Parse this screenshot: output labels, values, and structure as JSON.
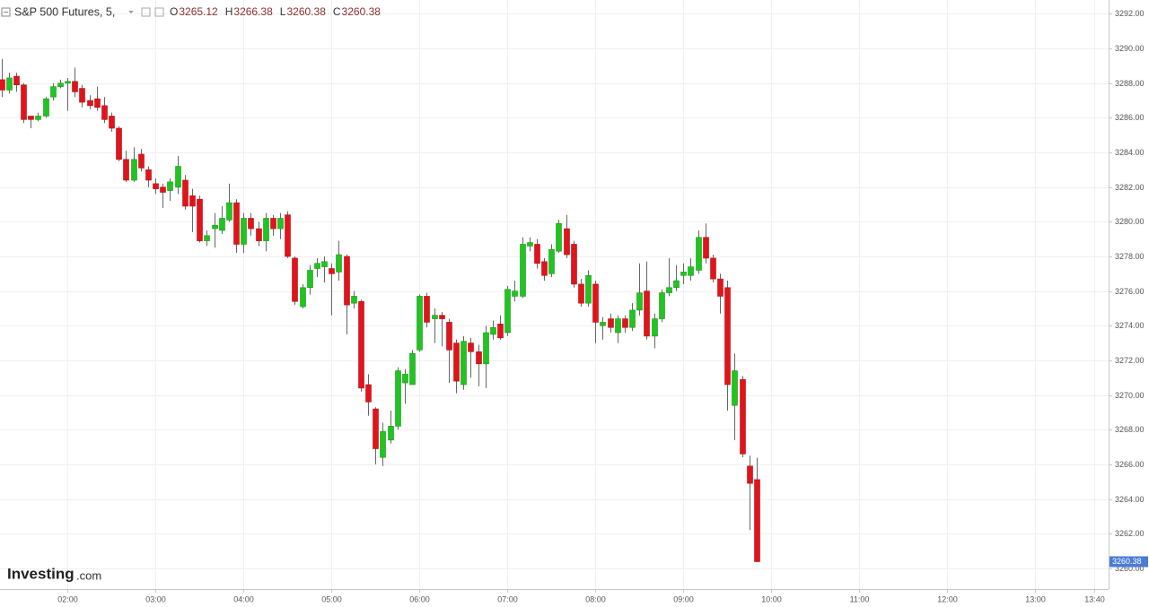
{
  "chart_data": {
    "type": "candlestick",
    "title": "S&P 500 Futures, 5,",
    "ohlc_labels": [
      "O",
      "H",
      "L",
      "C"
    ],
    "watermark": [
      "Investing",
      ".com"
    ],
    "up_color": "#22c322",
    "down_color": "#e0141b",
    "grid": true,
    "xlim": [
      74,
      830
    ],
    "xticks": [
      {
        "value": 120,
        "label": "02:00"
      },
      {
        "value": 180,
        "label": "03:00"
      },
      {
        "value": 240,
        "label": "04:00"
      },
      {
        "value": 300,
        "label": "05:00"
      },
      {
        "value": 360,
        "label": "06:00"
      },
      {
        "value": 420,
        "label": "07:00"
      },
      {
        "value": 480,
        "label": "08:00"
      },
      {
        "value": 540,
        "label": "09:00"
      },
      {
        "value": 600,
        "label": "10:00"
      },
      {
        "value": 660,
        "label": "11:00"
      },
      {
        "value": 720,
        "label": "12:00"
      },
      {
        "value": 780,
        "label": "13:00"
      },
      {
        "value": 820,
        "label": "13:40"
      }
    ],
    "ylim": [
      3258.8,
      3292.8
    ],
    "yticks": [
      {
        "value": 3260,
        "label": "3260.00"
      },
      {
        "value": 3262,
        "label": "3262.00"
      },
      {
        "value": 3264,
        "label": "3264.00"
      },
      {
        "value": 3266,
        "label": "3266.00"
      },
      {
        "value": 3268,
        "label": "3268.00"
      },
      {
        "value": 3270,
        "label": "3270.00"
      },
      {
        "value": 3272,
        "label": "3272.00"
      },
      {
        "value": 3274,
        "label": "3274.00"
      },
      {
        "value": 3276,
        "label": "3276.00"
      },
      {
        "value": 3278,
        "label": "3278.00"
      },
      {
        "value": 3280,
        "label": "3280.00"
      },
      {
        "value": 3282,
        "label": "3282.00"
      },
      {
        "value": 3284,
        "label": "3284.00"
      },
      {
        "value": 3286,
        "label": "3286.00"
      },
      {
        "value": 3288,
        "label": "3288.00"
      },
      {
        "value": 3290,
        "label": "3290.00"
      },
      {
        "value": 3292,
        "label": "3292.00"
      }
    ],
    "x": [
      75,
      80,
      85,
      90,
      95,
      100,
      105,
      110,
      115,
      120,
      125,
      130,
      135,
      140,
      145,
      150,
      155,
      160,
      165,
      170,
      175,
      180,
      185,
      190,
      195,
      200,
      205,
      210,
      215,
      220,
      225,
      230,
      235,
      240,
      245,
      250,
      255,
      260,
      265,
      270,
      275,
      280,
      285,
      290,
      295,
      300,
      305,
      310,
      315,
      320,
      325,
      330,
      335,
      340,
      345,
      350,
      355,
      360,
      365,
      370,
      375,
      380,
      385,
      390,
      395,
      400,
      405,
      410,
      415,
      420,
      425,
      430,
      435,
      440,
      445,
      450,
      455,
      460,
      465,
      470,
      475,
      480,
      485,
      490,
      495,
      500,
      505,
      510,
      515,
      520,
      525,
      530,
      535,
      540,
      545,
      550,
      555,
      560,
      565,
      570,
      575,
      580,
      585,
      590
    ],
    "open": [
      3288.2,
      3287.6,
      3288.4,
      3287.9,
      3286.1,
      3285.9,
      3286.1,
      3287.2,
      3287.8,
      3288.0,
      3288.1,
      3287.7,
      3287.0,
      3287.1,
      3286.7,
      3286.1,
      3285.4,
      3283.6,
      3282.4,
      3283.9,
      3283.0,
      3282.2,
      3282.0,
      3281.8,
      3282.0,
      3282.4,
      3281.5,
      3281.3,
      3278.9,
      3279.6,
      3279.5,
      3280.1,
      3281.1,
      3278.7,
      3280.2,
      3279.6,
      3278.9,
      3280.2,
      3279.6,
      3280.4,
      3277.9,
      3275.1,
      3276.2,
      3277.3,
      3277.4,
      3277.3,
      3277.1,
      3278.0,
      3275.3,
      3275.4,
      3270.6,
      3269.2,
      3266.4,
      3267.4,
      3268.2,
      3270.7,
      3270.6,
      3272.6,
      3275.7,
      3274.4,
      3274.6,
      3274.2,
      3273.0,
      3270.6,
      3273.0,
      3272.5,
      3271.8,
      3273.5,
      3274.1,
      3273.6,
      3275.7,
      3275.7,
      3278.6,
      3278.7,
      3277.7,
      3277.0,
      3278.3,
      3279.6,
      3278.7,
      3276.4,
      3275.3,
      3276.4,
      3274.0,
      3274.4,
      3273.6,
      3274.4,
      3273.9,
      3274.9,
      3276.0,
      3273.4,
      3274.4,
      3275.9,
      3276.2,
      3276.9,
      3276.9,
      3277.2,
      3279.1,
      3277.9,
      3276.7,
      3276.2,
      3269.4,
      3270.9,
      3265.9,
      3265.12
    ],
    "high": [
      3289.4,
      3288.6,
      3288.6,
      3288.0,
      3286.1,
      3286.3,
      3287.2,
      3288.0,
      3288.2,
      3288.3,
      3288.9,
      3287.9,
      3287.3,
      3287.8,
      3287.2,
      3286.3,
      3285.5,
      3284.1,
      3284.3,
      3284.2,
      3283.2,
      3282.5,
      3282.2,
      3282.5,
      3283.8,
      3282.7,
      3281.9,
      3281.5,
      3279.5,
      3280.5,
      3280.9,
      3282.2,
      3281.3,
      3280.5,
      3280.5,
      3280.0,
      3280.5,
      3280.4,
      3280.5,
      3280.6,
      3278.0,
      3276.4,
      3277.5,
      3277.9,
      3278.0,
      3277.6,
      3278.9,
      3278.1,
      3276.0,
      3275.5,
      3271.2,
      3269.3,
      3268.4,
      3269.1,
      3271.6,
      3271.5,
      3272.6,
      3275.8,
      3275.9,
      3275.0,
      3274.8,
      3274.4,
      3273.2,
      3273.4,
      3273.3,
      3272.9,
      3274.0,
      3274.3,
      3274.6,
      3276.3,
      3276.6,
      3279.1,
      3279.1,
      3279.0,
      3277.9,
      3278.7,
      3280.1,
      3280.4,
      3278.9,
      3276.7,
      3277.2,
      3276.6,
      3274.5,
      3274.7,
      3274.6,
      3274.6,
      3275.3,
      3277.6,
      3277.7,
      3274.7,
      3276.1,
      3277.9,
      3277.5,
      3277.6,
      3277.9,
      3279.5,
      3279.9,
      3278.1,
      3277.0,
      3276.6,
      3272.4,
      3271.1,
      3266.5,
      3266.38
    ],
    "low": [
      3287.2,
      3287.4,
      3287.5,
      3285.7,
      3285.4,
      3285.8,
      3286.0,
      3287.0,
      3287.7,
      3286.4,
      3287.2,
      3286.6,
      3286.5,
      3286.4,
      3285.7,
      3285.2,
      3283.5,
      3282.3,
      3282.3,
      3282.9,
      3282.0,
      3281.6,
      3280.8,
      3281.2,
      3281.6,
      3280.7,
      3279.4,
      3278.8,
      3278.6,
      3278.5,
      3279.3,
      3280.0,
      3278.2,
      3278.2,
      3279.2,
      3278.6,
      3278.3,
      3279.2,
      3279.0,
      3277.9,
      3275.2,
      3275.0,
      3275.8,
      3276.8,
      3276.5,
      3274.6,
      3276.6,
      3273.5,
      3275.0,
      3270.2,
      3268.8,
      3266.0,
      3265.9,
      3267.2,
      3268.0,
      3269.5,
      3270.6,
      3272.5,
      3273.9,
      3273.0,
      3272.8,
      3270.7,
      3270.1,
      3270.3,
      3271.0,
      3270.5,
      3270.4,
      3273.2,
      3273.2,
      3273.4,
      3275.4,
      3275.6,
      3278.3,
      3277.3,
      3276.6,
      3276.8,
      3278.2,
      3277.9,
      3276.2,
      3275.1,
      3275.1,
      3273.0,
      3273.2,
      3273.6,
      3273.0,
      3273.6,
      3273.7,
      3274.6,
      3273.2,
      3272.7,
      3274.2,
      3275.7,
      3276.0,
      3276.4,
      3276.6,
      3277.0,
      3277.6,
      3276.5,
      3274.7,
      3269.1,
      3267.4,
      3266.4,
      3262.2,
      3260.38
    ],
    "close": [
      3287.6,
      3288.3,
      3287.9,
      3285.9,
      3285.9,
      3286.1,
      3287.1,
      3287.8,
      3288.0,
      3288.1,
      3287.5,
      3286.9,
      3286.7,
      3286.6,
      3285.9,
      3285.4,
      3283.6,
      3282.4,
      3283.6,
      3283.1,
      3282.4,
      3281.9,
      3281.7,
      3282.3,
      3283.2,
      3280.9,
      3280.9,
      3278.9,
      3279.2,
      3279.8,
      3280.2,
      3281.1,
      3278.7,
      3280.2,
      3279.6,
      3278.9,
      3280.2,
      3279.6,
      3280.2,
      3278.0,
      3275.4,
      3276.2,
      3277.2,
      3277.6,
      3277.7,
      3277.0,
      3278.1,
      3275.2,
      3275.7,
      3270.4,
      3269.6,
      3266.9,
      3267.9,
      3268.2,
      3271.4,
      3271.2,
      3272.4,
      3275.7,
      3274.2,
      3274.6,
      3274.4,
      3272.6,
      3270.8,
      3273.1,
      3272.5,
      3271.8,
      3273.6,
      3273.9,
      3273.3,
      3276.1,
      3276.0,
      3278.7,
      3278.8,
      3277.6,
      3276.9,
      3278.4,
      3279.9,
      3278.1,
      3276.4,
      3275.3,
      3276.9,
      3274.2,
      3274.2,
      3273.9,
      3274.4,
      3273.9,
      3274.9,
      3275.9,
      3273.4,
      3274.4,
      3275.9,
      3276.2,
      3276.6,
      3277.1,
      3277.4,
      3279.1,
      3277.9,
      3276.7,
      3275.7,
      3270.6,
      3271.4,
      3266.6,
      3264.9,
      3260.38
    ]
  }
}
